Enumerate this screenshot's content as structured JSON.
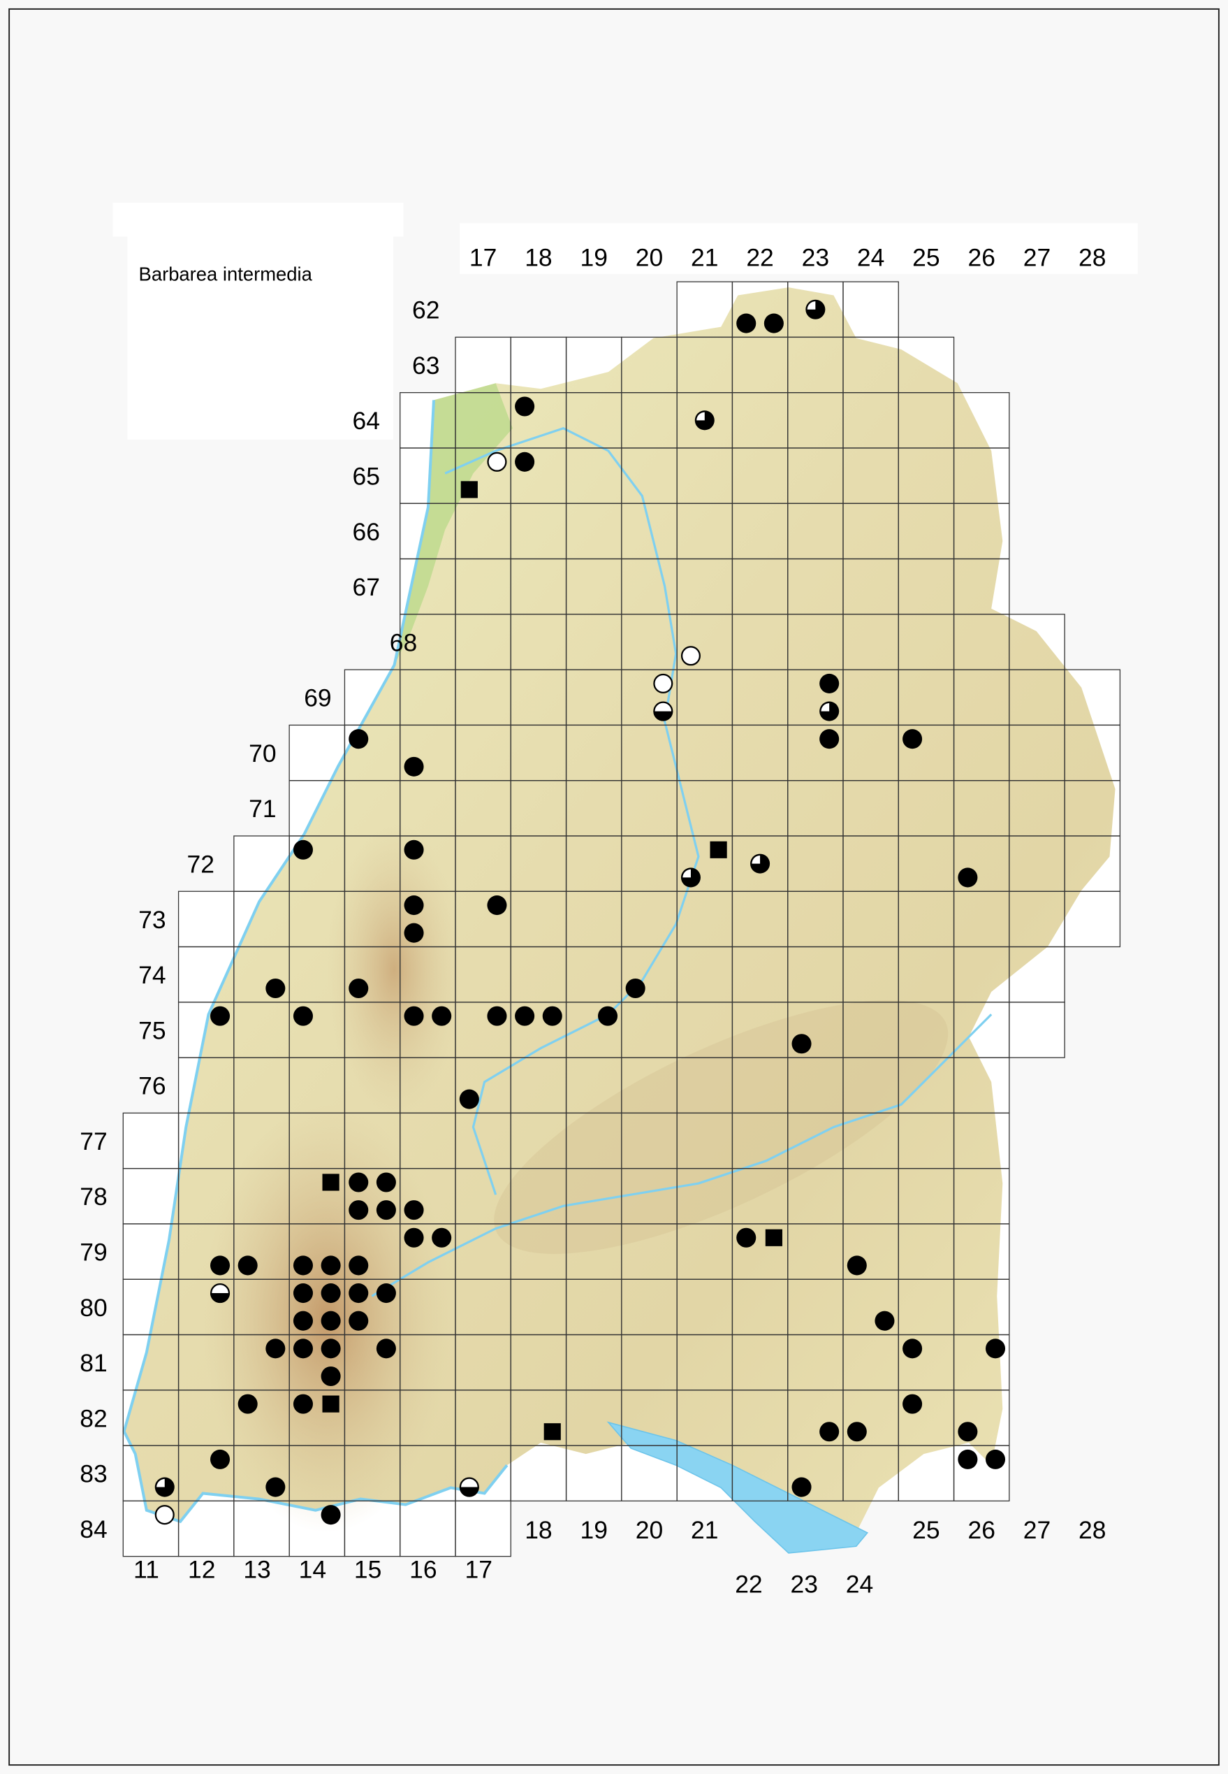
{
  "title": "Barbarea intermedia",
  "grid": {
    "top_column_labels": [
      "17",
      "18",
      "19",
      "20",
      "21",
      "22",
      "23",
      "24",
      "25",
      "26",
      "27",
      "28"
    ],
    "bottom_column_labels_left": [
      "11",
      "12",
      "13",
      "14",
      "15",
      "16",
      "17"
    ],
    "bottom_column_labels_mid": [
      "18",
      "19",
      "20",
      "21"
    ],
    "bottom_column_labels_lake": [
      "22",
      "23",
      "24"
    ],
    "bottom_column_labels_right": [
      "25",
      "26",
      "27",
      "28"
    ],
    "row_labels": [
      "62",
      "63",
      "64",
      "65",
      "66",
      "67",
      "68",
      "69",
      "70",
      "71",
      "72",
      "73",
      "74",
      "75",
      "76",
      "77",
      "78",
      "79",
      "80",
      "81",
      "82",
      "83",
      "84"
    ]
  },
  "colors": {
    "marker": "#000000",
    "water": "#7fd0f0",
    "land": "#efeabb",
    "lowland": "#b9d98a",
    "grid": "#333333"
  },
  "marker_types": [
    "filled-circle",
    "open-circle",
    "square",
    "three-quarter-circle",
    "half-circle"
  ],
  "markers": [
    {
      "cell": "6222",
      "q": 3,
      "type": "filled-circle"
    },
    {
      "cell": "6222",
      "q": 4,
      "type": "filled-circle"
    },
    {
      "cell": "6223",
      "q": 0,
      "type": "three-quarter-circle"
    },
    {
      "cell": "6418",
      "q": 1,
      "type": "filled-circle"
    },
    {
      "cell": "6421",
      "q": 0,
      "type": "three-quarter-circle"
    },
    {
      "cell": "6517",
      "q": 2,
      "type": "open-circle"
    },
    {
      "cell": "6518",
      "q": 1,
      "type": "filled-circle"
    },
    {
      "cell": "6517",
      "q": 3,
      "type": "square"
    },
    {
      "cell": "6821",
      "q": 3,
      "type": "open-circle"
    },
    {
      "cell": "6920",
      "q": 2,
      "type": "open-circle"
    },
    {
      "cell": "6920",
      "q": 4,
      "type": "half-circle"
    },
    {
      "cell": "6923",
      "q": 2,
      "type": "filled-circle"
    },
    {
      "cell": "6923",
      "q": 4,
      "type": "three-quarter-circle"
    },
    {
      "cell": "7023",
      "q": 2,
      "type": "filled-circle"
    },
    {
      "cell": "7025",
      "q": 1,
      "type": "filled-circle"
    },
    {
      "cell": "7015",
      "q": 1,
      "type": "filled-circle"
    },
    {
      "cell": "7016",
      "q": 3,
      "type": "filled-circle"
    },
    {
      "cell": "7214",
      "q": 1,
      "type": "filled-circle"
    },
    {
      "cell": "7216",
      "q": 1,
      "type": "filled-circle"
    },
    {
      "cell": "7221",
      "q": 2,
      "type": "square"
    },
    {
      "cell": "7221",
      "q": 3,
      "type": "three-quarter-circle"
    },
    {
      "cell": "7222",
      "q": 0,
      "type": "three-quarter-circle"
    },
    {
      "cell": "7226",
      "q": 3,
      "type": "filled-circle"
    },
    {
      "cell": "7316",
      "q": 1,
      "type": "filled-circle"
    },
    {
      "cell": "7317",
      "q": 2,
      "type": "filled-circle"
    },
    {
      "cell": "7316",
      "q": 3,
      "type": "filled-circle"
    },
    {
      "cell": "7413",
      "q": 4,
      "type": "filled-circle"
    },
    {
      "cell": "7415",
      "q": 3,
      "type": "filled-circle"
    },
    {
      "cell": "7420",
      "q": 3,
      "type": "filled-circle"
    },
    {
      "cell": "7512",
      "q": 2,
      "type": "filled-circle"
    },
    {
      "cell": "7514",
      "q": 1,
      "type": "filled-circle"
    },
    {
      "cell": "7516",
      "q": 1,
      "type": "filled-circle"
    },
    {
      "cell": "7516",
      "q": 2,
      "type": "filled-circle"
    },
    {
      "cell": "7517",
      "q": 2,
      "type": "filled-circle"
    },
    {
      "cell": "7518",
      "q": 1,
      "type": "filled-circle"
    },
    {
      "cell": "7518",
      "q": 2,
      "type": "filled-circle"
    },
    {
      "cell": "7519",
      "q": 2,
      "type": "filled-circle"
    },
    {
      "cell": "7523",
      "q": 3,
      "type": "filled-circle"
    },
    {
      "cell": "7617",
      "q": 3,
      "type": "filled-circle"
    },
    {
      "cell": "7814",
      "q": 2,
      "type": "square"
    },
    {
      "cell": "7815",
      "q": 1,
      "type": "filled-circle"
    },
    {
      "cell": "7815",
      "q": 2,
      "type": "filled-circle"
    },
    {
      "cell": "7815",
      "q": 3,
      "type": "filled-circle"
    },
    {
      "cell": "7815",
      "q": 4,
      "type": "filled-circle"
    },
    {
      "cell": "7816",
      "q": 3,
      "type": "filled-circle"
    },
    {
      "cell": "7916",
      "q": 1,
      "type": "filled-circle"
    },
    {
      "cell": "7916",
      "q": 2,
      "type": "filled-circle"
    },
    {
      "cell": "7922",
      "q": 1,
      "type": "filled-circle"
    },
    {
      "cell": "7922",
      "q": 2,
      "type": "square"
    },
    {
      "cell": "7912",
      "q": 4,
      "type": "filled-circle"
    },
    {
      "cell": "7913",
      "q": 3,
      "type": "filled-circle"
    },
    {
      "cell": "7914",
      "q": 3,
      "type": "filled-circle"
    },
    {
      "cell": "7914",
      "q": 4,
      "type": "filled-circle"
    },
    {
      "cell": "7915",
      "q": 3,
      "type": "filled-circle"
    },
    {
      "cell": "7924",
      "q": 3,
      "type": "filled-circle"
    },
    {
      "cell": "8012",
      "q": 2,
      "type": "half-circle"
    },
    {
      "cell": "8014",
      "q": 1,
      "type": "filled-circle"
    },
    {
      "cell": "8014",
      "q": 2,
      "type": "filled-circle"
    },
    {
      "cell": "8015",
      "q": 1,
      "type": "filled-circle"
    },
    {
      "cell": "8015",
      "q": 2,
      "type": "filled-circle"
    },
    {
      "cell": "8014",
      "q": 3,
      "type": "filled-circle"
    },
    {
      "cell": "8014",
      "q": 4,
      "type": "filled-circle"
    },
    {
      "cell": "8015",
      "q": 3,
      "type": "filled-circle"
    },
    {
      "cell": "8024",
      "q": 4,
      "type": "filled-circle"
    },
    {
      "cell": "8113",
      "q": 2,
      "type": "filled-circle"
    },
    {
      "cell": "8114",
      "q": 1,
      "type": "filled-circle"
    },
    {
      "cell": "8114",
      "q": 2,
      "type": "filled-circle"
    },
    {
      "cell": "8115",
      "q": 2,
      "type": "filled-circle"
    },
    {
      "cell": "8125",
      "q": 1,
      "type": "filled-circle"
    },
    {
      "cell": "8126",
      "q": 2,
      "type": "filled-circle"
    },
    {
      "cell": "8114",
      "q": 4,
      "type": "filled-circle"
    },
    {
      "cell": "8213",
      "q": 1,
      "type": "filled-circle"
    },
    {
      "cell": "8214",
      "q": 1,
      "type": "filled-circle"
    },
    {
      "cell": "8214",
      "q": 2,
      "type": "square"
    },
    {
      "cell": "8225",
      "q": 1,
      "type": "filled-circle"
    },
    {
      "cell": "8218",
      "q": 4,
      "type": "square"
    },
    {
      "cell": "8223",
      "q": 4,
      "type": "filled-circle"
    },
    {
      "cell": "8224",
      "q": 3,
      "type": "filled-circle"
    },
    {
      "cell": "8226",
      "q": 3,
      "type": "filled-circle"
    },
    {
      "cell": "8312",
      "q": 2,
      "type": "filled-circle"
    },
    {
      "cell": "8326",
      "q": 1,
      "type": "filled-circle"
    },
    {
      "cell": "8326",
      "q": 2,
      "type": "filled-circle"
    },
    {
      "cell": "8311",
      "q": 4,
      "type": "three-quarter-circle"
    },
    {
      "cell": "8313",
      "q": 4,
      "type": "filled-circle"
    },
    {
      "cell": "8317",
      "q": 3,
      "type": "half-circle"
    },
    {
      "cell": "8323",
      "q": 3,
      "type": "filled-circle"
    },
    {
      "cell": "8411",
      "q": 2,
      "type": "open-circle"
    },
    {
      "cell": "8414",
      "q": 2,
      "type": "filled-circle"
    }
  ]
}
